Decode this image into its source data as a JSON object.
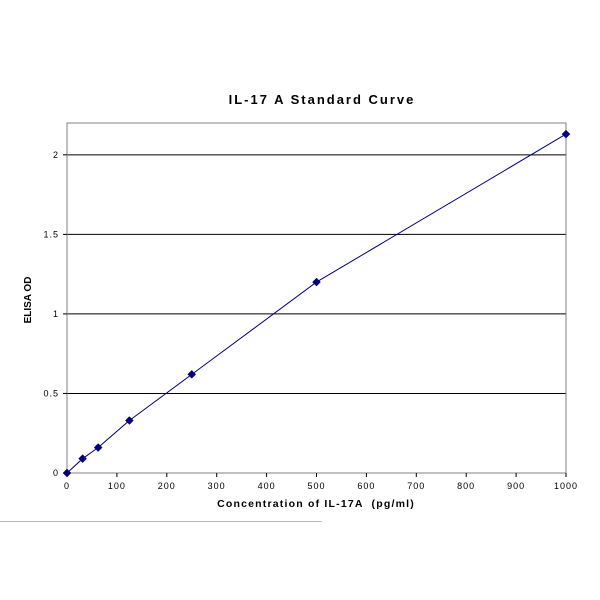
{
  "chart_data": {
    "type": "line",
    "title": "IL-17 A Standard Curve",
    "xlabel": "Concentration of IL-17A  (pg/ml)",
    "ylabel": "ELISA OD",
    "xlim": [
      0,
      1000
    ],
    "ylim": [
      0,
      2.2
    ],
    "xticks": [
      0,
      100,
      200,
      300,
      400,
      500,
      600,
      700,
      800,
      900,
      1000
    ],
    "xtick_labels": [
      "0",
      "100",
      "200",
      "300",
      "400",
      "500",
      "600",
      "700",
      "800",
      "900",
      "1000"
    ],
    "yticks": [
      0,
      0.5,
      1,
      1.5,
      2
    ],
    "ytick_labels": [
      "0",
      "0.5",
      "1",
      "1.5",
      "2"
    ],
    "grid": "horizontal",
    "legend": "none",
    "series": [
      {
        "x": [
          0,
          31.25,
          62.5,
          125,
          250,
          500,
          1000
        ],
        "y": [
          0.0,
          0.09,
          0.16,
          0.33,
          0.62,
          1.2,
          2.13
        ],
        "color": "#00007f",
        "marker": "diamond"
      }
    ]
  }
}
